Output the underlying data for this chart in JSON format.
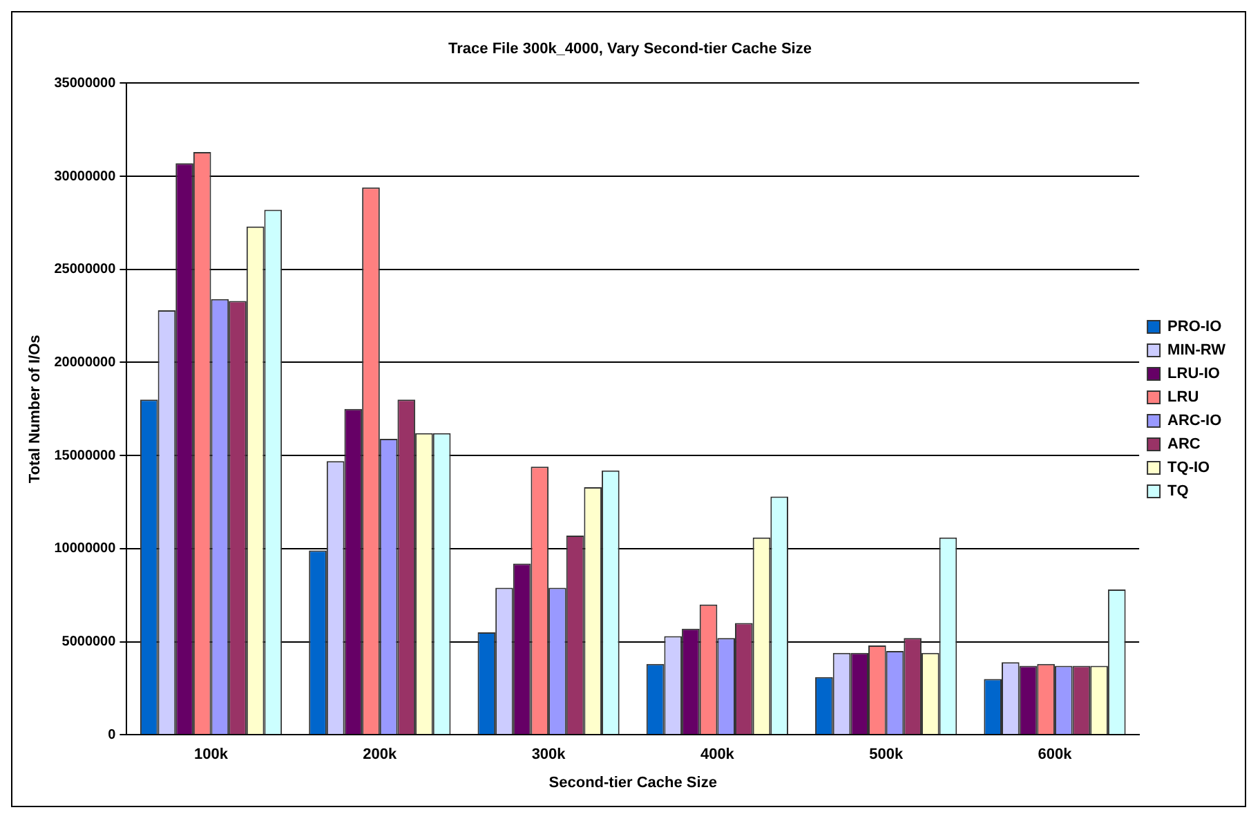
{
  "chart_data": {
    "type": "bar",
    "title": "Trace File 300k_4000, Vary Second-tier Cache Size",
    "xlabel": "Second-tier Cache Size",
    "ylabel": "Total Number of I/Os",
    "categories": [
      "100k",
      "200k",
      "300k",
      "400k",
      "500k",
      "600k"
    ],
    "series": [
      {
        "name": "PRO-IO",
        "color": "#0066cc",
        "values": [
          18000000,
          9900000,
          5500000,
          3800000,
          3100000,
          3000000
        ]
      },
      {
        "name": "MIN-RW",
        "color": "#ccccff",
        "values": [
          22800000,
          14700000,
          7900000,
          5300000,
          4400000,
          3900000
        ]
      },
      {
        "name": "LRU-IO",
        "color": "#660066",
        "values": [
          30700000,
          17500000,
          9200000,
          5700000,
          4400000,
          3700000
        ]
      },
      {
        "name": "LRU",
        "color": "#ff8080",
        "values": [
          31300000,
          29400000,
          14400000,
          7000000,
          4800000,
          3800000
        ]
      },
      {
        "name": "ARC-IO",
        "color": "#9999ff",
        "values": [
          23400000,
          15900000,
          7900000,
          5200000,
          4500000,
          3700000
        ]
      },
      {
        "name": "ARC",
        "color": "#993366",
        "values": [
          23300000,
          18000000,
          10700000,
          6000000,
          5200000,
          3700000
        ]
      },
      {
        "name": "TQ-IO",
        "color": "#ffffcc",
        "values": [
          27300000,
          16200000,
          13300000,
          10600000,
          4400000,
          3700000
        ]
      },
      {
        "name": "TQ",
        "color": "#ccffff",
        "values": [
          28200000,
          16200000,
          14200000,
          12800000,
          10600000,
          7800000
        ]
      }
    ],
    "ylim": [
      0,
      35000000
    ],
    "yticks": [
      0,
      5000000,
      10000000,
      15000000,
      20000000,
      25000000,
      30000000,
      35000000
    ],
    "grid": "y",
    "legend": "right"
  }
}
